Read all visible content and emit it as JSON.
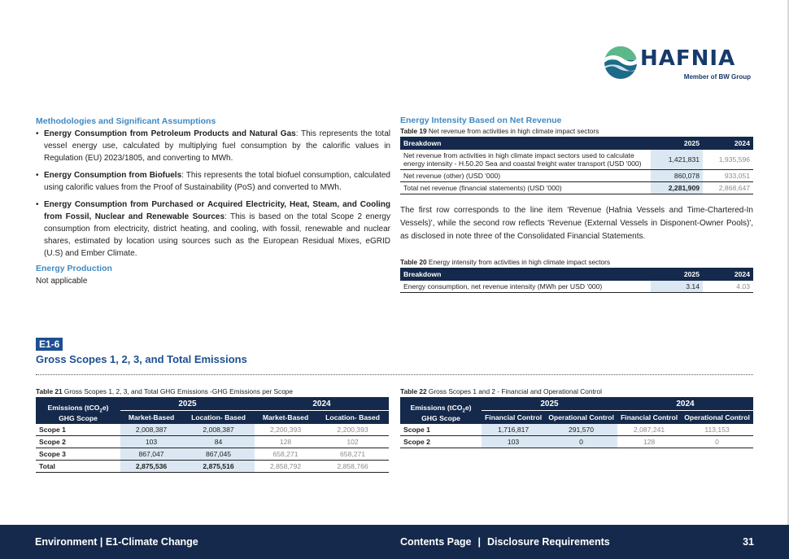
{
  "logo": {
    "name": "HAFNIA",
    "tagline": "Member of BW Group",
    "colors": {
      "green": "#4caf7d",
      "navy": "#163a6b"
    }
  },
  "left": {
    "methods_title": "Methodologies and Significant Assumptions",
    "bullets": [
      {
        "bold": "Energy Consumption from Petroleum Products and Natural Gas",
        "text": ": This represents the total vessel energy use, calculated by multiplying fuel consumption by the calorific values in Regulation (EU) 2023/1805, and converting to MWh."
      },
      {
        "bold": "Energy Consumption from Biofuels",
        "text": ": This represents the total biofuel consumption, calculated using calorific values from the Proof of Sustainability (PoS) and converted to MWh."
      },
      {
        "bold": "Energy Consumption from Purchased or Acquired Electricity, Heat, Steam, and Cooling from Fossil, Nuclear and Renewable Sources",
        "text": ": This is based on the total Scope 2 energy consumption from electricity, district heating, and cooling, with fossil, renewable and nuclear shares, estimated by location using sources such as the European Residual Mixes, eGRID (U.S) and Ember Climate."
      }
    ],
    "production_title": "Energy Production",
    "production_text": "Not applicable"
  },
  "right": {
    "title": "Energy Intensity Based on Net Revenue",
    "t19": {
      "num": "Table 19",
      "caption": "Net revenue from activities in high climate impact sectors",
      "headers": [
        "Breakdown",
        "2025",
        "2024"
      ],
      "rows": [
        {
          "label": "Net revenue from activities in high climate impact sectors used to calculate energy intensity - H.50.20 Sea and coastal freight water transport (USD '000)",
          "v2025": "1,421,831",
          "v2024": "1,935,596"
        },
        {
          "label": "Net revenue (other) (USD '000)",
          "v2025": "860,078",
          "v2024": "933,051"
        },
        {
          "label": "Total net revenue (financial statements) (USD '000)",
          "v2025": "2,281,909",
          "v2024": "2,868,647"
        }
      ]
    },
    "paragraph": "The first row corresponds to the line item 'Revenue (Hafnia Vessels and Time-Chartered-In Vessels)', while the second row reflects 'Revenue (External Vessels in Disponent-Owner Pools)', as disclosed in note three of the Consolidated Financial Statements.",
    "t20": {
      "num": "Table 20",
      "caption": "Energy intensity from activities in high climate impact sectors",
      "headers": [
        "Breakdown",
        "2025",
        "2024"
      ],
      "rows": [
        {
          "label": "Energy consumption, net revenue intensity (MWh per USD '000)",
          "v2025": "3.14",
          "v2024": "4.03"
        }
      ]
    }
  },
  "section": {
    "badge": "E1-6",
    "title": "Gross Scopes 1, 2, 3, and Total Emissions"
  },
  "t21": {
    "num": "Table 21",
    "caption": "Gross Scopes 1, 2, 3, and Total GHG Emissions -GHG Emissions per Scope",
    "h1": "Emissions (tCO",
    "h1sub": "2",
    "h1end": "e)",
    "h2": "GHG Scope",
    "years": [
      "2025",
      "2024"
    ],
    "cols": [
      "Market-Based",
      "Location- Based",
      "Market-Based",
      "Location- Based"
    ],
    "rows": [
      {
        "label": "Scope 1",
        "v": [
          "2,008,387",
          "2,008,387",
          "2,200,393",
          "2,200,393"
        ]
      },
      {
        "label": "Scope 2",
        "v": [
          "103",
          "84",
          "128",
          "102"
        ]
      },
      {
        "label": "Scope 3",
        "v": [
          "867,047",
          "867,045",
          "658,271",
          "658,271"
        ]
      },
      {
        "label": "Total",
        "v": [
          "2,875,536",
          "2,875,516",
          "2,858,792",
          "2,858,766"
        ]
      }
    ]
  },
  "t22": {
    "num": "Table 22",
    "caption": "Gross Scopes 1 and 2 - Financial and Operational Control",
    "h1": "Emissions (tCO",
    "h1sub": "2",
    "h1end": "e)",
    "h2": "GHG Scope",
    "years": [
      "2025",
      "2024"
    ],
    "cols": [
      "Financial Control",
      "Operational Control",
      "Financial Control",
      "Operational Control"
    ],
    "rows": [
      {
        "label": "Scope 1",
        "v": [
          "1,716,817",
          "291,570",
          "2,087,241",
          "113,153"
        ]
      },
      {
        "label": "Scope 2",
        "v": [
          "103",
          "0",
          "128",
          "0"
        ]
      }
    ]
  },
  "footer": {
    "left": "Environment | E1-Climate Change",
    "contents": "Contents Page",
    "sep": "|",
    "disclosure": "Disclosure Requirements",
    "page": "31"
  },
  "colors": {
    "navy": "#14294b",
    "accent_blue": "#3f8ac4",
    "highlight": "#dbe8f3"
  }
}
